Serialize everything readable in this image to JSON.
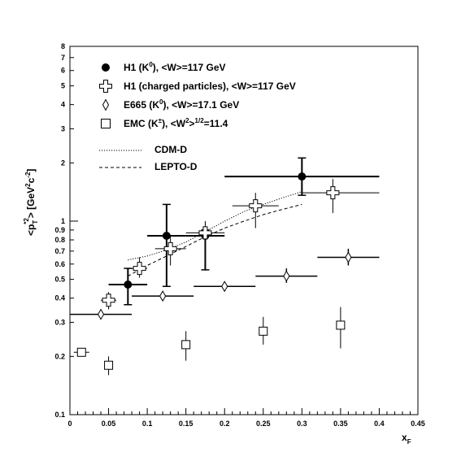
{
  "chart_data": {
    "type": "scatter",
    "title": "",
    "xlabel": "x_F",
    "ylabel": "<p_T*2> [GeV^2 c^-2]",
    "xlim": [
      0,
      0.45
    ],
    "ylim": [
      0.1,
      8
    ],
    "y_scale": "log",
    "grid": false,
    "legend_position": "top-left",
    "x_ticks": [
      "0",
      "0.05",
      "0.1",
      "0.15",
      "0.2",
      "0.25",
      "0.3",
      "0.35",
      "0.4",
      "0.45"
    ],
    "y_ticks_labeled": [
      {
        "value": 0.1,
        "label": "0.1"
      },
      {
        "value": 0.2,
        "label": "0.2"
      },
      {
        "value": 0.3,
        "label": "0.3"
      },
      {
        "value": 0.4,
        "label": "0.4"
      },
      {
        "value": 0.5,
        "label": "0.5"
      },
      {
        "value": 0.6,
        "label": "0.6"
      },
      {
        "value": 0.7,
        "label": "0.7"
      },
      {
        "value": 0.8,
        "label": "0.8"
      },
      {
        "value": 0.9,
        "label": "0.9"
      },
      {
        "value": 1,
        "label": "1"
      },
      {
        "value": 2,
        "label": "2"
      },
      {
        "value": 3,
        "label": "3"
      },
      {
        "value": 4,
        "label": "4"
      },
      {
        "value": 5,
        "label": "5"
      },
      {
        "value": 6,
        "label": "6"
      },
      {
        "value": 7,
        "label": "7"
      },
      {
        "value": 8,
        "label": "8"
      }
    ],
    "series": [
      {
        "name": "H1 (K0), <W>=117 GeV",
        "marker": "filled-circle",
        "points": [
          {
            "x": 0.075,
            "y": 0.47,
            "xlo": 0.05,
            "xhi": 0.1,
            "ylo": 0.37,
            "yhi": 0.57
          },
          {
            "x": 0.125,
            "y": 0.84,
            "xlo": 0.1,
            "xhi": 0.15,
            "ylo": 0.46,
            "yhi": 1.22
          },
          {
            "x": 0.175,
            "y": 0.84,
            "xlo": 0.15,
            "xhi": 0.2,
            "ylo": 0.56,
            "yhi": 0.9
          },
          {
            "x": 0.3,
            "y": 1.7,
            "xlo": 0.2,
            "xhi": 0.4,
            "ylo": 1.36,
            "yhi": 2.12
          }
        ]
      },
      {
        "name": "H1 (charged particles), <W>=117 GeV",
        "marker": "open-cross",
        "points": [
          {
            "x": 0.05,
            "y": 0.39,
            "xlo": 0.04,
            "xhi": 0.06,
            "ylo": 0.35,
            "yhi": 0.43
          },
          {
            "x": 0.09,
            "y": 0.57,
            "xlo": 0.075,
            "xhi": 0.1,
            "ylo": 0.51,
            "yhi": 0.65
          },
          {
            "x": 0.13,
            "y": 0.72,
            "xlo": 0.11,
            "xhi": 0.15,
            "ylo": 0.59,
            "yhi": 0.84
          },
          {
            "x": 0.175,
            "y": 0.87,
            "xlo": 0.15,
            "xhi": 0.2,
            "ylo": 0.75,
            "yhi": 1.0
          },
          {
            "x": 0.24,
            "y": 1.2,
            "xlo": 0.21,
            "xhi": 0.27,
            "ylo": 0.92,
            "yhi": 1.4
          },
          {
            "x": 0.34,
            "y": 1.4,
            "xlo": 0.3,
            "xhi": 0.4,
            "ylo": 1.1,
            "yhi": 1.65
          }
        ]
      },
      {
        "name": "E665 (K0), <W>=17.1 GeV",
        "marker": "open-diamond",
        "points": [
          {
            "x": 0.04,
            "y": 0.33,
            "xlo": 0.0,
            "xhi": 0.08
          },
          {
            "x": 0.12,
            "y": 0.41,
            "xlo": 0.08,
            "xhi": 0.16
          },
          {
            "x": 0.2,
            "y": 0.46,
            "xlo": 0.16,
            "xhi": 0.24
          },
          {
            "x": 0.28,
            "y": 0.52,
            "xlo": 0.24,
            "xhi": 0.32,
            "ylo": 0.48,
            "yhi": 0.57
          },
          {
            "x": 0.36,
            "y": 0.65,
            "xlo": 0.32,
            "xhi": 0.4,
            "ylo": 0.59,
            "yhi": 0.72
          }
        ]
      },
      {
        "name": "EMC (K+-), <W^2>^1/2=11.4",
        "marker": "open-square",
        "points": [
          {
            "x": 0.015,
            "y": 0.21,
            "xlo": 0.005,
            "xhi": 0.025
          },
          {
            "x": 0.05,
            "y": 0.18,
            "ylo": 0.16,
            "yhi": 0.2
          },
          {
            "x": 0.15,
            "y": 0.23,
            "ylo": 0.19,
            "yhi": 0.27
          },
          {
            "x": 0.25,
            "y": 0.27,
            "ylo": 0.23,
            "yhi": 0.32
          },
          {
            "x": 0.35,
            "y": 0.29,
            "ylo": 0.22,
            "yhi": 0.36
          }
        ]
      },
      {
        "name": "CDM-D",
        "style": "dotted",
        "points": [
          {
            "x": 0.075,
            "y": 0.63
          },
          {
            "x": 0.1,
            "y": 0.66
          },
          {
            "x": 0.125,
            "y": 0.71
          },
          {
            "x": 0.15,
            "y": 0.78
          },
          {
            "x": 0.175,
            "y": 0.88
          },
          {
            "x": 0.2,
            "y": 1.0
          },
          {
            "x": 0.225,
            "y": 1.12
          },
          {
            "x": 0.25,
            "y": 1.22
          },
          {
            "x": 0.275,
            "y": 1.32
          },
          {
            "x": 0.3,
            "y": 1.42
          }
        ]
      },
      {
        "name": "LEPTO-D",
        "style": "dashed",
        "points": [
          {
            "x": 0.075,
            "y": 0.52
          },
          {
            "x": 0.1,
            "y": 0.59
          },
          {
            "x": 0.125,
            "y": 0.66
          },
          {
            "x": 0.15,
            "y": 0.74
          },
          {
            "x": 0.175,
            "y": 0.83
          },
          {
            "x": 0.2,
            "y": 0.92
          },
          {
            "x": 0.225,
            "y": 1.0
          },
          {
            "x": 0.25,
            "y": 1.08
          },
          {
            "x": 0.275,
            "y": 1.15
          },
          {
            "x": 0.3,
            "y": 1.22
          }
        ]
      }
    ]
  }
}
